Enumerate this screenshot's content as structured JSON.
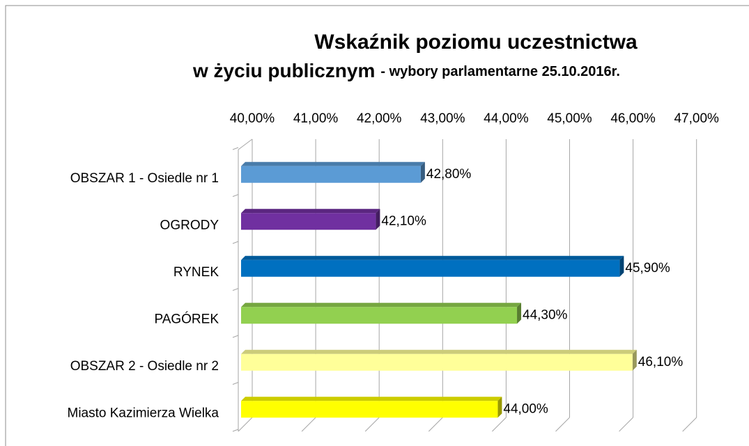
{
  "chart_data": {
    "type": "bar3d_horizontal",
    "title": "Wskaźnik poziomu uczestnictwa",
    "title_line2": "w życiu publicznym",
    "subtitle": "- wybory parlamentarne 25.10.2016r.",
    "categories": [
      "OBSZAR 1 - Osiedle nr 1",
      "OGRODY",
      "RYNEK",
      "PAGÓREK",
      "OBSZAR 2 - Osiedle nr 2",
      "Miasto Kazimierza Wielka"
    ],
    "values": [
      42.8,
      42.1,
      45.9,
      44.3,
      46.1,
      44.0
    ],
    "value_labels": [
      "42,80%",
      "42,10%",
      "45,90%",
      "44,30%",
      "46,10%",
      "44,00%"
    ],
    "colors": [
      "#5b9bd5",
      "#7030a0",
      "#0070c0",
      "#92d050",
      "#ffff99",
      "#ffff00"
    ],
    "xlim": [
      40,
      47
    ],
    "xticks": [
      {
        "value": 40,
        "label": "40,00%"
      },
      {
        "value": 41,
        "label": "41,00%"
      },
      {
        "value": 42,
        "label": "42,00%"
      },
      {
        "value": 43,
        "label": "43,00%"
      },
      {
        "value": 44,
        "label": "44,00%"
      },
      {
        "value": 45,
        "label": "45,00%"
      },
      {
        "value": 46,
        "label": "46,00%"
      },
      {
        "value": 47,
        "label": "47,00%"
      }
    ],
    "grid": true
  }
}
